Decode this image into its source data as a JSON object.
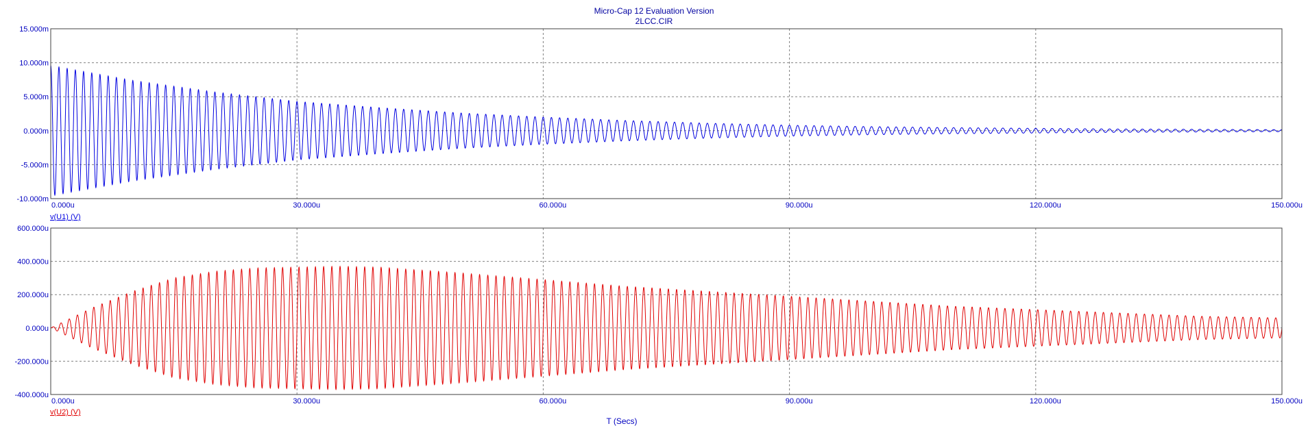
{
  "window": {
    "title": "Micro-Cap 12 Evaluation Version",
    "subtitle": "2LCC.CIR"
  },
  "colors": {
    "title_text": "#0000a0",
    "axis_text": "#0000c0",
    "grid": "#808080",
    "frame": "#404040",
    "trace_u1": "#0000e0",
    "trace_u2": "#e00000"
  },
  "x_axis_label": "T (Secs)",
  "chart_data": [
    {
      "type": "line",
      "ylabel": "v(U1) (V)",
      "xlim": [
        0,
        0.00015
      ],
      "ylim": [
        -0.01,
        0.015
      ],
      "x_ticks": [
        0,
        3e-05,
        6e-05,
        9e-05,
        0.00012,
        0.00015
      ],
      "x_tick_labels": [
        "0.000u",
        "30.000u",
        "60.000u",
        "90.000u",
        "120.000u",
        "150.000u"
      ],
      "y_ticks": [
        -0.01,
        -0.005,
        0,
        0.005,
        0.01,
        0.015
      ],
      "y_tick_labels": [
        "-10.000m",
        "-5.000m",
        "0.000m",
        "5.000m",
        "10.000m",
        "15.000m"
      ],
      "grid": true,
      "series": [
        {
          "name": "v(U1) (V)",
          "color": "#0000e0",
          "frequency_hz": 1000000,
          "phase": "cos",
          "envelope": {
            "x": [
              0,
              1e-05,
              2e-05,
              3e-05,
              4e-05,
              5e-05,
              6e-05,
              7e-05,
              8e-05,
              9e-05,
              0.0001,
              0.00011,
              0.00012,
              0.00013,
              0.00014,
              0.00015
            ],
            "y": [
              0.0096,
              0.0074,
              0.0057,
              0.0043,
              0.0034,
              0.0026,
              0.002,
              0.0015,
              0.0011,
              0.0008,
              0.0006,
              0.00045,
              0.00035,
              0.00025,
              0.0002,
              0.00015
            ]
          }
        }
      ]
    },
    {
      "type": "line",
      "ylabel": "v(U2) (V)",
      "xlim": [
        0,
        0.00015
      ],
      "ylim": [
        -0.0004,
        0.0006
      ],
      "x_ticks": [
        0,
        3e-05,
        6e-05,
        9e-05,
        0.00012,
        0.00015
      ],
      "x_tick_labels": [
        "0.000u",
        "30.000u",
        "60.000u",
        "90.000u",
        "120.000u",
        "150.000u"
      ],
      "y_ticks": [
        -0.0004,
        -0.0002,
        0,
        0.0002,
        0.0004,
        0.0006
      ],
      "y_tick_labels": [
        "-400.000u",
        "-200.000u",
        "0.000u",
        "200.000u",
        "400.000u",
        "600.000u"
      ],
      "grid": true,
      "series": [
        {
          "name": "v(U2) (V)",
          "color": "#e00000",
          "frequency_hz": 1000000,
          "phase": "sin",
          "envelope": {
            "x": [
              0,
              5e-06,
              1e-05,
              1.5e-05,
              2e-05,
              2.5e-05,
              3e-05,
              3.5e-05,
              4e-05,
              5e-05,
              6e-05,
              7e-05,
              8e-05,
              9e-05,
              0.0001,
              0.00011,
              0.00012,
              0.00013,
              0.00014,
              0.00015
            ],
            "y": [
              0,
              0.00012,
              0.00022,
              0.0003,
              0.00034,
              0.00036,
              0.000365,
              0.00037,
              0.000365,
              0.00033,
              0.00029,
              0.00025,
              0.00022,
              0.00019,
              0.00016,
              0.00013,
              0.00011,
              9e-05,
              7e-05,
              6e-05
            ]
          }
        }
      ]
    }
  ]
}
